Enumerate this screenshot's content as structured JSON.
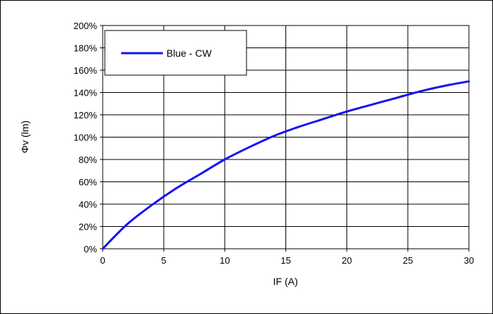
{
  "chart_data": {
    "type": "line",
    "title": "",
    "xlabel": "IF (A)",
    "ylabel": "Φv (lm)",
    "xlim": [
      0,
      30
    ],
    "ylim": [
      0,
      200
    ],
    "x_ticks": [
      "0",
      "5",
      "10",
      "15",
      "20",
      "25",
      "30"
    ],
    "y_ticks": [
      "0%",
      "20%",
      "40%",
      "60%",
      "80%",
      "100%",
      "120%",
      "140%",
      "160%",
      "180%",
      "200%"
    ],
    "grid": true,
    "legend_position": "top-left",
    "series": [
      {
        "name": "Blue - CW",
        "color": "#1414f0",
        "x": [
          0,
          2,
          4,
          6,
          8,
          10,
          12,
          14,
          16,
          18,
          20,
          22,
          24,
          26,
          28,
          30
        ],
        "y": [
          0,
          22,
          39,
          54,
          67,
          80,
          91,
          101,
          109,
          116,
          123,
          129,
          135,
          141,
          146,
          150
        ]
      }
    ]
  }
}
